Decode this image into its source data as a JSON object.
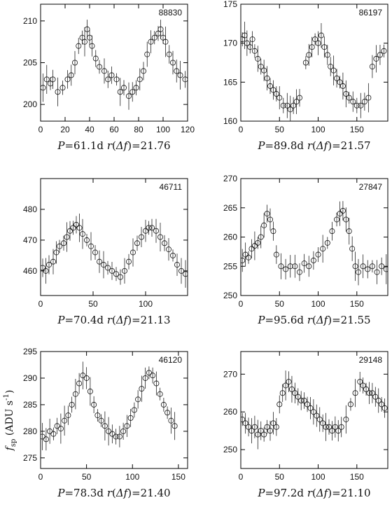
{
  "figure": {
    "ylabel": "f_sp (ADU s^-1)"
  },
  "chart_data": [
    {
      "type": "scatter",
      "id_label": "88830",
      "caption": "P=61.1d r(Δf)=21.76",
      "xlim": [
        0,
        120
      ],
      "ylim": [
        198,
        212
      ],
      "xticks": [
        0,
        20,
        40,
        60,
        80,
        100,
        120
      ],
      "yticks": [
        200,
        205,
        210
      ],
      "grid": false,
      "series": [
        {
          "x": [
            2,
            5,
            8,
            10,
            14,
            18,
            22,
            25,
            28,
            31,
            34,
            36,
            38,
            40,
            42,
            45,
            48,
            52,
            55,
            58,
            62,
            65,
            68,
            72,
            75,
            78,
            81,
            84,
            87,
            90,
            93,
            96,
            98,
            100,
            102,
            105,
            108,
            111,
            114,
            118
          ],
          "y": [
            202,
            203,
            202.5,
            203,
            201.5,
            202,
            203,
            203.5,
            205,
            207,
            208,
            207.5,
            209,
            208,
            207,
            205.5,
            204.5,
            204,
            203,
            203.5,
            203,
            201.5,
            202,
            201,
            201.5,
            202,
            203,
            204,
            206,
            207.5,
            208,
            208.5,
            209,
            208,
            207.5,
            206,
            205,
            204,
            203.5,
            203
          ]
        }
      ]
    },
    {
      "type": "scatter",
      "id_label": "86197",
      "caption": "P=89.8d r(Δf)=21.57",
      "xlim": [
        0,
        190
      ],
      "ylim": [
        160,
        175
      ],
      "xticks": [
        0,
        50,
        100,
        150
      ],
      "yticks": [
        160,
        165,
        170,
        175
      ],
      "grid": false,
      "series": [
        {
          "x": [
            2,
            5,
            8,
            12,
            15,
            18,
            22,
            26,
            30,
            34,
            38,
            42,
            46,
            50,
            55,
            60,
            64,
            68,
            72,
            76,
            84,
            88,
            92,
            96,
            100,
            104,
            108,
            112,
            116,
            120,
            124,
            128,
            132,
            136,
            140,
            145,
            150,
            155,
            160,
            165,
            170,
            175,
            180,
            185
          ],
          "y": [
            170.5,
            171,
            170,
            169.5,
            170.5,
            169,
            168,
            167,
            166.5,
            165.5,
            164.5,
            164,
            163.5,
            163,
            162,
            162,
            161.5,
            162,
            162.5,
            163,
            167.5,
            168.5,
            169.5,
            170.5,
            170,
            171,
            169.5,
            168.5,
            167,
            166.5,
            165.5,
            165,
            164.5,
            163.5,
            163,
            162.5,
            162,
            162,
            162.5,
            163,
            167,
            168,
            168.5,
            169
          ]
        }
      ]
    },
    {
      "type": "scatter",
      "id_label": "46711",
      "caption": "P=70.4d r(Δf)=21.13",
      "xlim": [
        0,
        140
      ],
      "ylim": [
        452,
        490
      ],
      "xticks": [
        0,
        50,
        100
      ],
      "yticks": [
        460,
        470,
        480
      ],
      "grid": false,
      "series": [
        {
          "x": [
            2,
            5,
            8,
            12,
            15,
            18,
            22,
            25,
            28,
            31,
            34,
            37,
            40,
            44,
            48,
            52,
            56,
            60,
            64,
            68,
            72,
            76,
            80,
            84,
            88,
            92,
            96,
            100,
            103,
            106,
            110,
            114,
            118,
            122,
            126,
            130,
            134,
            138
          ],
          "y": [
            461,
            460,
            462,
            463,
            466,
            468,
            469,
            471,
            473,
            474,
            475,
            474,
            472,
            470,
            468,
            466,
            463,
            462,
            461,
            460,
            459,
            458,
            460,
            463,
            466,
            469,
            471,
            473,
            474,
            474,
            473,
            471,
            469,
            467,
            465,
            462,
            460,
            459
          ]
        }
      ]
    },
    {
      "type": "scatter",
      "id_label": "27847",
      "caption": "P=95.6d r(Δf)=21.55",
      "xlim": [
        0,
        190
      ],
      "ylim": [
        250,
        270
      ],
      "xticks": [
        0,
        50,
        100,
        150
      ],
      "yticks": [
        250,
        255,
        260,
        265,
        270
      ],
      "grid": false,
      "series": [
        {
          "x": [
            2,
            6,
            10,
            14,
            18,
            22,
            26,
            30,
            34,
            38,
            42,
            46,
            52,
            58,
            64,
            70,
            76,
            82,
            88,
            94,
            100,
            106,
            112,
            118,
            124,
            128,
            132,
            136,
            140,
            144,
            148,
            152,
            158,
            164,
            170,
            176,
            182,
            188
          ],
          "y": [
            256,
            257,
            256.5,
            258,
            258.5,
            259,
            260,
            262,
            264,
            263,
            261,
            257,
            255,
            254.5,
            255,
            255,
            254,
            255.5,
            255,
            256,
            257,
            258,
            259,
            261,
            263,
            264,
            264.5,
            263,
            261,
            258,
            255,
            254,
            255,
            254.5,
            255,
            254,
            255,
            254.5
          ]
        }
      ]
    },
    {
      "type": "scatter",
      "id_label": "46120",
      "caption": "P=78.3d r(Δf)=21.40",
      "xlim": [
        0,
        160
      ],
      "ylim": [
        273,
        295
      ],
      "xticks": [
        0,
        50,
        100,
        150
      ],
      "yticks": [
        275,
        280,
        285,
        290,
        295
      ],
      "grid": false,
      "series": [
        {
          "x": [
            2,
            6,
            10,
            14,
            18,
            22,
            26,
            30,
            34,
            38,
            42,
            46,
            50,
            54,
            58,
            62,
            66,
            70,
            74,
            78,
            82,
            86,
            90,
            94,
            98,
            102,
            106,
            110,
            114,
            118,
            122,
            126,
            130,
            134,
            138,
            142,
            146
          ],
          "y": [
            279,
            278.5,
            280,
            279.5,
            281,
            280.5,
            282,
            283,
            285,
            287,
            289,
            290.5,
            290,
            287.5,
            285,
            283,
            282,
            281,
            280,
            279.5,
            279,
            279,
            280,
            281,
            282.5,
            284,
            286,
            288,
            290,
            291,
            290.5,
            289,
            287,
            285,
            283.5,
            282,
            281
          ]
        }
      ]
    },
    {
      "type": "scatter",
      "id_label": "29148",
      "caption": "P=97.2d r(Δf)=21.10",
      "xlim": [
        0,
        190
      ],
      "ylim": [
        245,
        276
      ],
      "xticks": [
        0,
        50,
        100,
        150
      ],
      "yticks": [
        250,
        260,
        270
      ],
      "grid": false,
      "series": [
        {
          "x": [
            2,
            6,
            10,
            14,
            18,
            22,
            26,
            30,
            34,
            38,
            42,
            46,
            50,
            54,
            58,
            62,
            66,
            70,
            74,
            78,
            82,
            86,
            90,
            94,
            98,
            102,
            106,
            110,
            114,
            118,
            122,
            126,
            130,
            136,
            142,
            148,
            154,
            158,
            162,
            166,
            170,
            174,
            178,
            182,
            186
          ],
          "y": [
            258,
            257,
            256,
            255,
            256,
            254,
            255,
            254,
            256,
            255,
            257,
            256,
            262,
            265,
            267,
            268,
            266,
            265,
            264,
            263,
            263,
            262,
            261,
            260,
            259,
            258,
            257,
            256,
            256,
            255,
            256,
            255,
            256,
            258,
            262,
            265,
            268,
            267,
            266,
            265,
            265,
            264,
            263,
            262,
            261
          ]
        }
      ]
    }
  ]
}
